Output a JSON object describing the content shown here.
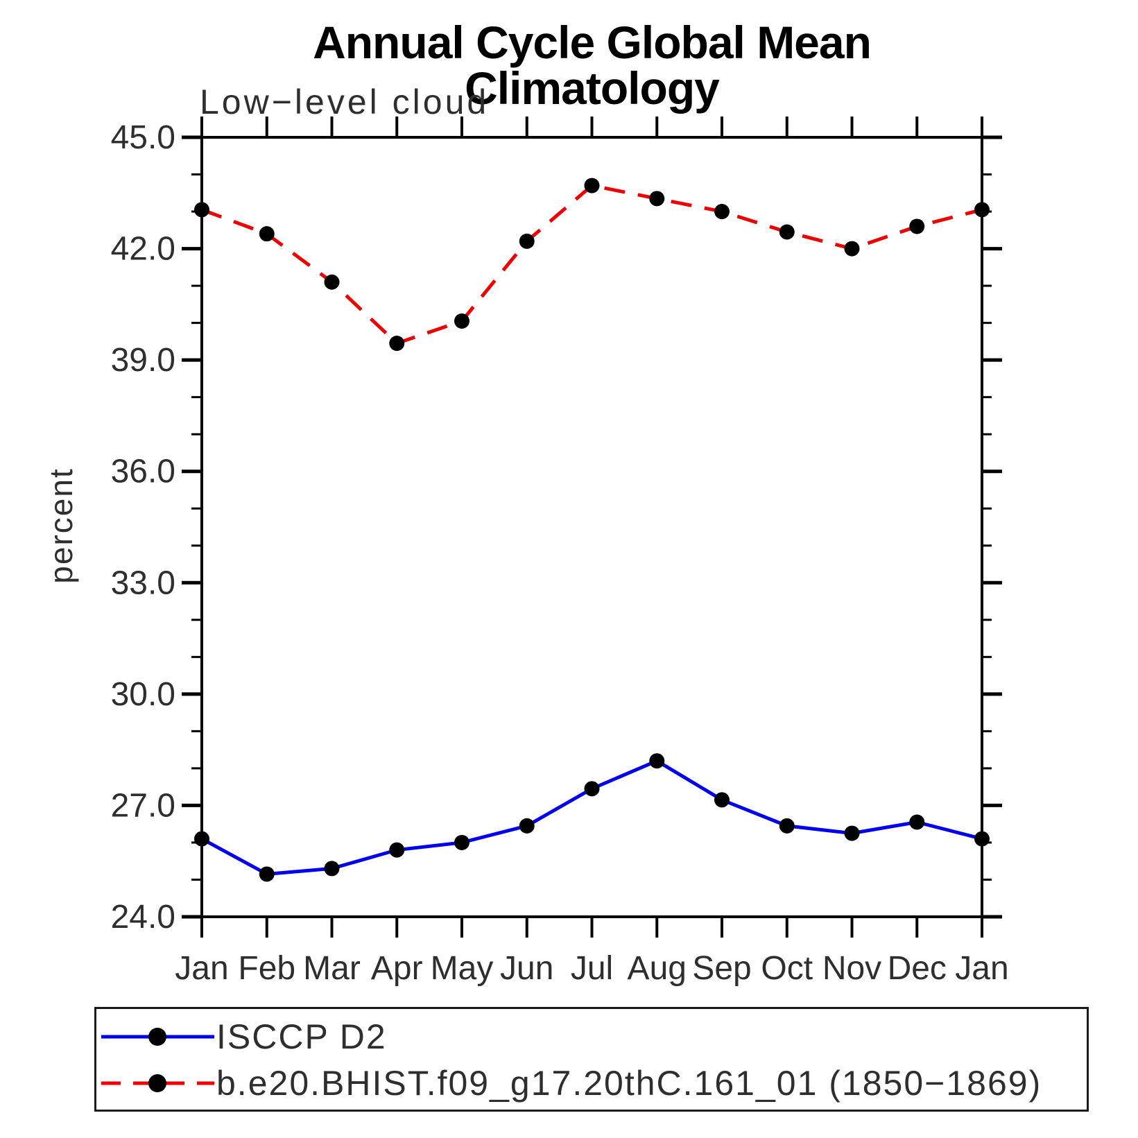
{
  "chart_data": {
    "type": "line",
    "title": "Annual Cycle Global Mean Climatology",
    "subtitle": "Low−level cloud",
    "ylabel": "percent",
    "categories": [
      "Jan",
      "Feb",
      "Mar",
      "Apr",
      "May",
      "Jun",
      "Jul",
      "Aug",
      "Sep",
      "Oct",
      "Nov",
      "Dec",
      "Jan"
    ],
    "ylim": [
      24,
      45
    ],
    "y_minor_step": 1,
    "grid": false,
    "legend_position": "bottom",
    "axis_color": "#000000",
    "marker_shape": "circle",
    "yticks": [
      {
        "v": 45,
        "label": "45.0"
      },
      {
        "v": 42,
        "label": "42.0"
      },
      {
        "v": 39,
        "label": "39.0"
      },
      {
        "v": 36,
        "label": "36.0"
      },
      {
        "v": 33,
        "label": "33.0"
      },
      {
        "v": 30,
        "label": "30.0"
      },
      {
        "v": 27,
        "label": "27.0"
      },
      {
        "v": 24,
        "label": "24.0"
      }
    ],
    "series": [
      {
        "name": "ISCCP D2",
        "color": "#0000ee",
        "line_style": "solid",
        "marker_color": "#000000",
        "values": [
          26.1,
          25.15,
          25.3,
          25.8,
          26.0,
          26.45,
          27.45,
          28.2,
          27.15,
          26.45,
          26.25,
          26.55,
          26.1
        ]
      },
      {
        "name": "b.e20.BHIST.f09_g17.20thC.161_01 (1850−1869)",
        "color": "#ee0000",
        "line_style": "dashed",
        "marker_color": "#000000",
        "values": [
          43.05,
          42.4,
          41.1,
          39.45,
          40.05,
          42.2,
          43.7,
          43.35,
          43.0,
          42.45,
          42.0,
          42.6,
          43.05
        ]
      }
    ]
  }
}
